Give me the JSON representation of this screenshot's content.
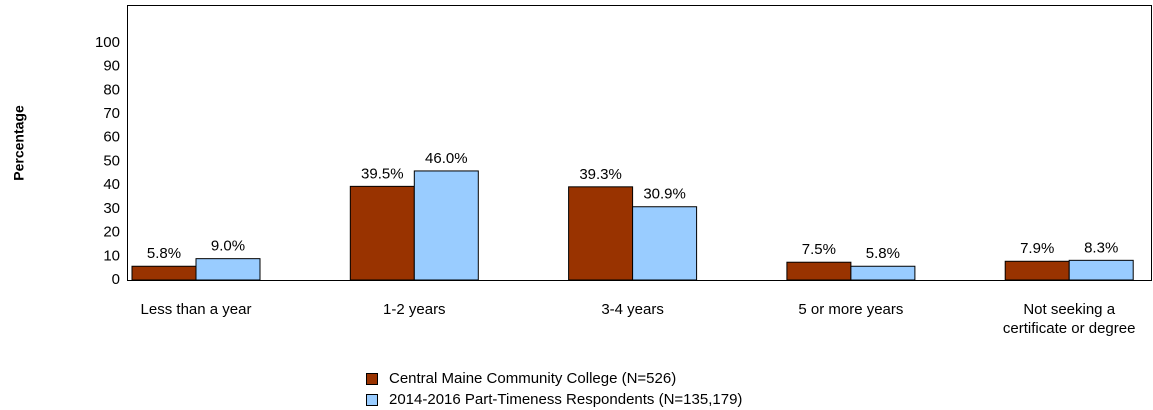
{
  "chart_data": {
    "type": "bar",
    "y_label": "Percentage",
    "categories": [
      "Less than a year",
      "1-2 years",
      "3-4 years",
      "5 or more years",
      "Not seeking a certificate or degree"
    ],
    "series": [
      {
        "name": "Central Maine Community College (N=526)",
        "color": "#993300",
        "values": [
          5.8,
          39.5,
          39.3,
          7.5,
          7.9
        ],
        "value_labels": [
          "5.8%",
          "39.5%",
          "39.3%",
          "7.5%",
          "7.9%"
        ]
      },
      {
        "name": "2014-2016 Part-Timeness Respondents (N=135,179)",
        "color": "#99ccff",
        "values": [
          9.0,
          46.0,
          30.9,
          5.8,
          8.3
        ],
        "value_labels": [
          "9.0%",
          "46.0%",
          "30.9%",
          "5.8%",
          "8.3%"
        ]
      }
    ],
    "ylim": [
      0,
      116
    ],
    "yticks": [
      0,
      10,
      20,
      30,
      40,
      50,
      60,
      70,
      80,
      90,
      100
    ],
    "grid": false
  }
}
